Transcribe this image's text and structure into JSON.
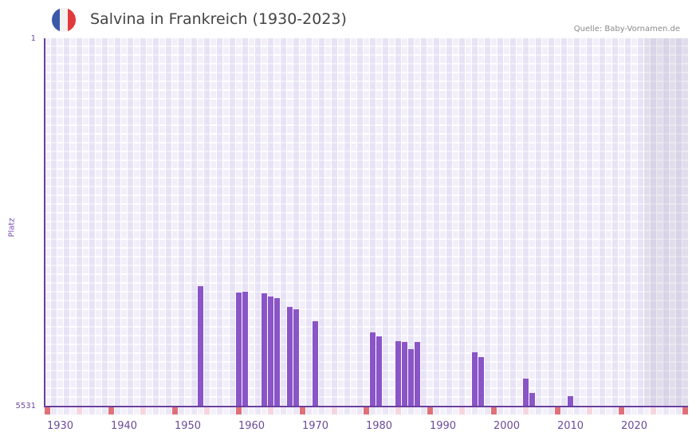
{
  "header": {
    "title": "Salvina in Frankreich (1930-2023)",
    "source": "Quelle: Baby-Vornamen.de",
    "flag_icon": "france-flag-icon",
    "flag_colors": [
      "#3a5aa8",
      "#f2f2f2",
      "#e23a3a"
    ]
  },
  "colors": {
    "bar": "#8a55c6",
    "axis": "#6b3fa0",
    "grid_bg": "#f2effa",
    "decade_mark": "#e07078",
    "half_decade_mark": "#f5d6df",
    "future_shade": "#e4e0ec"
  },
  "chart_data": {
    "type": "bar",
    "title": "Salvina in Frankreich (1930-2023)",
    "xlabel": "",
    "ylabel": "Platz",
    "y_inverted": true,
    "ylim": [
      1,
      5531
    ],
    "y_ticks": [
      "1",
      "5531"
    ],
    "x_range": [
      1928,
      2028
    ],
    "x_ticks": [
      "1930",
      "1940",
      "1950",
      "1960",
      "1970",
      "1980",
      "1990",
      "2000",
      "2010",
      "2020"
    ],
    "grid": true,
    "legend": null,
    "shaded_future_from": 2022,
    "x": [
      1952,
      1958,
      1959,
      1962,
      1963,
      1964,
      1966,
      1967,
      1970,
      1979,
      1980,
      1983,
      1984,
      1985,
      1986,
      1995,
      1996,
      2003,
      2004,
      2010
    ],
    "values": [
      3723,
      3819,
      3807,
      3831,
      3879,
      3903,
      4035,
      4071,
      4250,
      4418,
      4478,
      4550,
      4562,
      4670,
      4562,
      4717,
      4789,
      5112,
      5328,
      5376
    ]
  },
  "axis": {
    "ylabel": "Platz",
    "ytick_top": "1",
    "ytick_bottom": "5531"
  }
}
